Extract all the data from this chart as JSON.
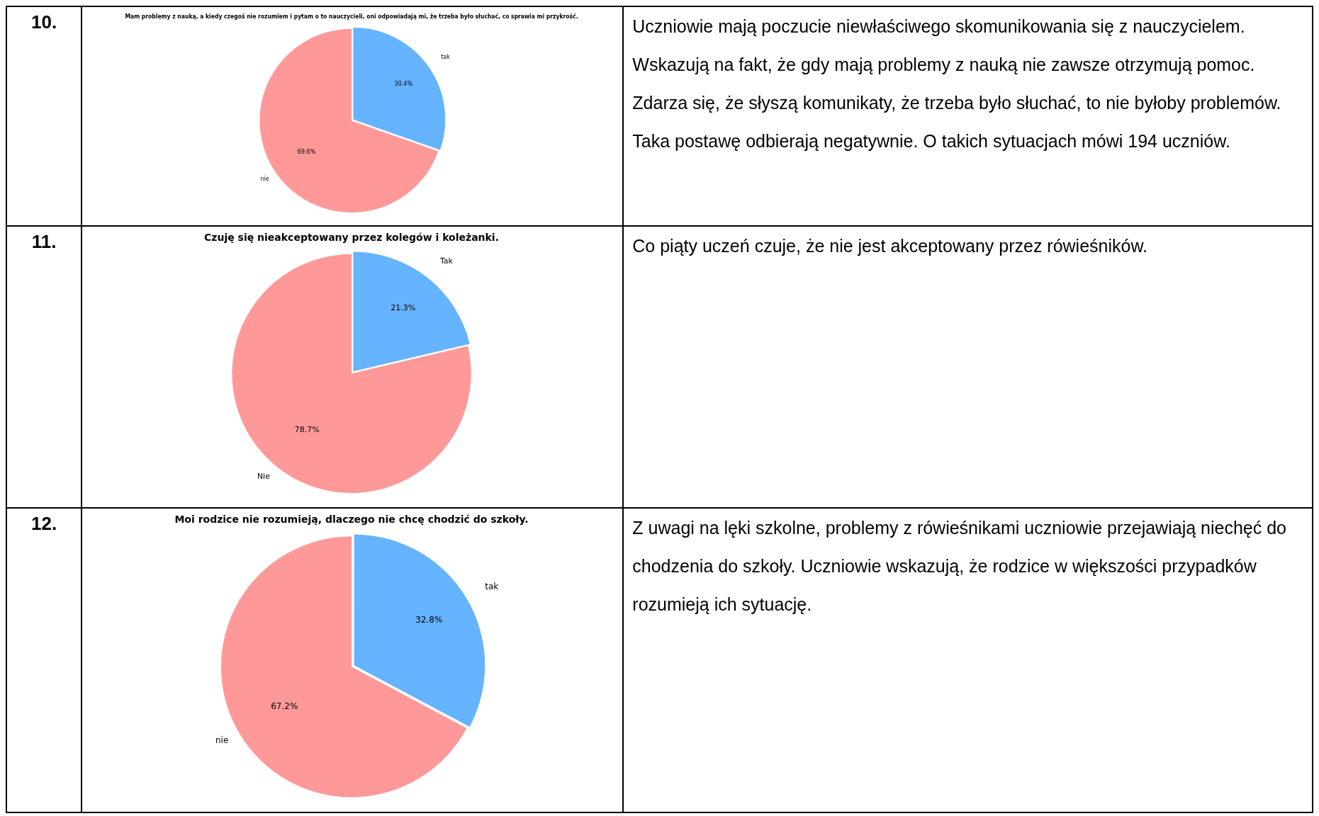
{
  "chart_data": [
    {
      "type": "other",
      "annotations": [
        "10."
      ]
    },
    {
      "type": "pie",
      "title": "Mam problemy z nauką, a kiedy czegoś nie rozumiem i pytam o to nauczycieli, oni odpowiadają mi, że trzeba było słuchać, co sprawia mi przykrość.",
      "categories": [
        "tak",
        "nie"
      ],
      "values": [
        30.4,
        69.6
      ],
      "colors": [
        "#66b3ff",
        "#ff9999"
      ],
      "value_labels": [
        "30.4%",
        "69.6%"
      ]
    },
    {
      "type": "other",
      "annotations": [
        "Uczniowie mają poczucie niewłaściwego skomunikowania się z nauczycielem.",
        "Wskazują na fakt, że gdy  mają problemy z nauką nie zawsze otrzymują pomoc.",
        "Zdarza się, że słyszą komunikaty, że trzeba było słuchać, to nie byłoby problemów.",
        "Taka postawę odbierają negatywnie. O takich sytuacjach mówi 194 uczniów."
      ]
    },
    {
      "type": "other",
      "annotations": [
        "11."
      ]
    },
    {
      "type": "pie",
      "title": "Czuję się nieakceptowany przez kolegów i koleżanki.",
      "categories": [
        "Tak",
        "Nie"
      ],
      "values": [
        21.3,
        78.7
      ],
      "colors": [
        "#66b3ff",
        "#ff9999"
      ],
      "value_labels": [
        "21.3%",
        "78.7%"
      ]
    },
    {
      "type": "other",
      "annotations": [
        "Co piąty uczeń czuje, że nie jest akceptowany przez rówieśników."
      ]
    },
    {
      "type": "other",
      "annotations": [
        "12."
      ]
    },
    {
      "type": "pie",
      "title": "Moi rodzice nie rozumieją, dlaczego nie chcę chodzić do szkoły.",
      "categories": [
        "tak",
        "nie"
      ],
      "values": [
        32.8,
        67.2
      ],
      "colors": [
        "#66b3ff",
        "#ff9999"
      ],
      "value_labels": [
        "32.8%",
        "67.2%"
      ]
    },
    {
      "type": "other",
      "annotations": [
        "Z uwagi na lęki szkolne, problemy z rówieśnikami uczniowie przejawiają niechęć do chodzenia do szkoły. Uczniowie wskazują, że rodzice w większości przypadków rozumieją ich sytuację."
      ]
    }
  ]
}
